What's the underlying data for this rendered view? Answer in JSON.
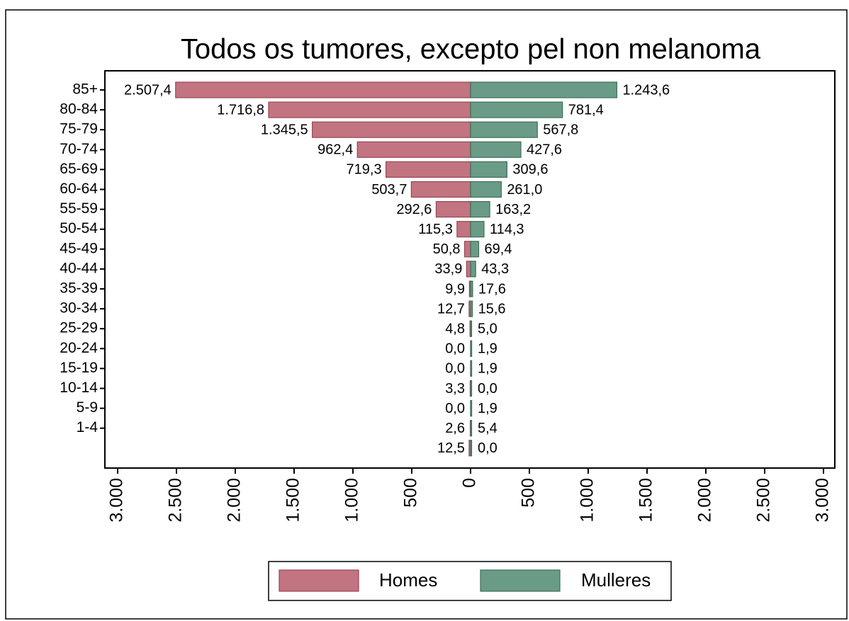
{
  "chart_data": {
    "type": "pyramid",
    "title": "Todos os tumores, excepto pel non melanoma",
    "categories": [
      "85+",
      "80-84",
      "75-79",
      "70-74",
      "65-69",
      "60-64",
      "55-59",
      "50-54",
      "45-49",
      "40-44",
      "35-39",
      "30-34",
      "25-29",
      "20-24",
      "15-19",
      "10-14",
      "5-9",
      "1-4",
      null
    ],
    "series": [
      {
        "name": "Homes",
        "color": "#c27480",
        "side": "left",
        "values": [
          2507.4,
          1716.8,
          1345.5,
          962.4,
          719.3,
          503.7,
          292.6,
          115.3,
          50.8,
          33.9,
          9.9,
          12.7,
          4.8,
          0.0,
          0.0,
          3.3,
          0.0,
          2.6,
          12.5
        ],
        "value_labels": [
          "2.507,4",
          "1.716,8",
          "1.345,5",
          "962,4",
          "719,3",
          "503,7",
          "292,6",
          "115,3",
          "50,8",
          "33,9",
          "9,9",
          "12,7",
          "4,8",
          "0,0",
          "0,0",
          "3,3",
          "0,0",
          "2,6",
          "12,5"
        ]
      },
      {
        "name": "Mulleres",
        "color": "#6a9b86",
        "side": "right",
        "values": [
          1243.6,
          781.4,
          567.8,
          427.6,
          309.6,
          261.0,
          163.2,
          114.3,
          69.4,
          43.3,
          17.6,
          15.6,
          5.0,
          1.9,
          1.9,
          0.0,
          1.9,
          5.4,
          0.0
        ],
        "value_labels": [
          "1.243,6",
          "781,4",
          "567,8",
          "427,6",
          "309,6",
          "261,0",
          "163,2",
          "114,3",
          "69,4",
          "43,3",
          "17,6",
          "15,6",
          "5,0",
          "1,9",
          "1,9",
          "0,0",
          "1,9",
          "5,4",
          "0,0"
        ]
      }
    ],
    "xlim": [
      0,
      3000
    ],
    "xticks": [
      0,
      500,
      {
        "value": 1000,
        "label": "1.000"
      },
      {
        "value": 1500,
        "label": "1.500"
      },
      {
        "value": 2000,
        "label": "2.000"
      },
      {
        "value": 2500,
        "label": "2.500"
      },
      {
        "value": 3000,
        "label": "3.000"
      }
    ],
    "legend": "bottom"
  }
}
